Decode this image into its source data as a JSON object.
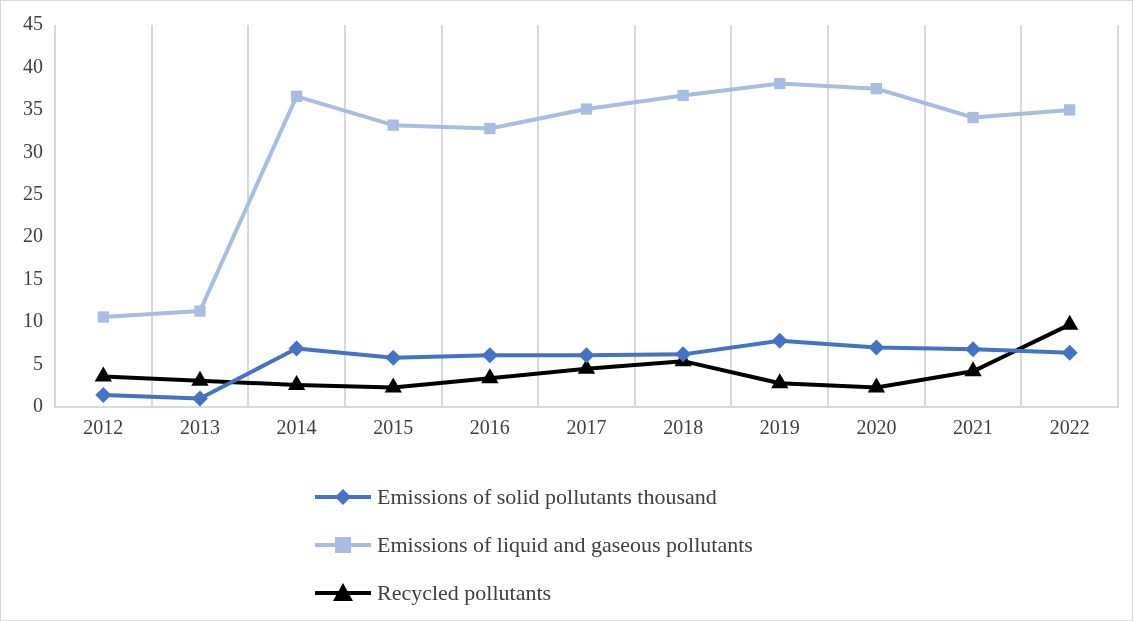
{
  "chart_data": {
    "type": "line",
    "categories": [
      "2012",
      "2013",
      "2014",
      "2015",
      "2016",
      "2017",
      "2018",
      "2019",
      "2020",
      "2021",
      "2022"
    ],
    "series": [
      {
        "name": "Emissions of solid pollutants thousand",
        "color": "#4472c4",
        "marker": "diamond",
        "values": [
          1.4,
          1.0,
          6.9,
          5.8,
          6.1,
          6.1,
          6.2,
          7.8,
          7.0,
          6.8,
          6.4
        ]
      },
      {
        "name": "Emissions of liquid and gaseous pollutants",
        "color": "#a9bde3",
        "marker": "square",
        "values": [
          10.6,
          11.3,
          36.6,
          33.2,
          32.8,
          35.1,
          36.7,
          38.1,
          37.5,
          34.1,
          35.0
        ]
      },
      {
        "name": "Recycled pollutants",
        "color": "#000000",
        "marker": "triangle",
        "values": [
          3.6,
          3.1,
          2.6,
          2.3,
          3.4,
          4.5,
          5.4,
          2.8,
          2.3,
          4.2,
          9.7
        ]
      }
    ],
    "ylim": [
      0,
      45
    ],
    "yticks": [
      0,
      5,
      10,
      15,
      20,
      25,
      30,
      35,
      40,
      45
    ],
    "grid": "x",
    "legend": "bottom",
    "line_style": "solid"
  }
}
